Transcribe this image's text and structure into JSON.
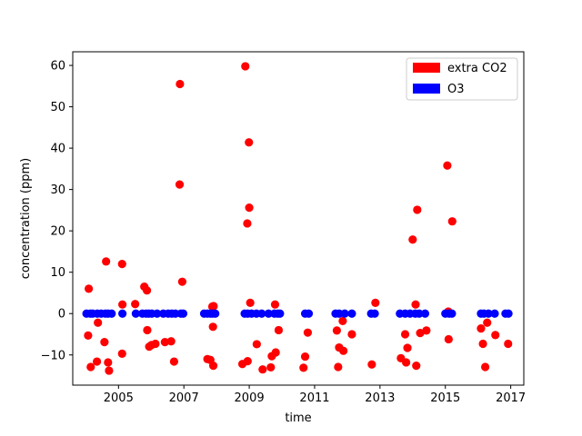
{
  "chart_data": {
    "type": "scatter",
    "xlabel": "time",
    "ylabel": "concentration (ppm)",
    "x_tick_labels": [
      "2005",
      "2007",
      "2009",
      "2011",
      "2013",
      "2015",
      "2017"
    ],
    "y_tick_labels": [
      "−10",
      "0",
      "10",
      "20",
      "30",
      "40",
      "50",
      "60"
    ],
    "xlim": [
      2003.6,
      2017.4
    ],
    "ylim": [
      -17.3,
      63.3
    ],
    "legend_position": "top-right",
    "grid": false,
    "series": [
      {
        "name": "extra CO2",
        "color": "#ff0000",
        "points": [
          [
            2004.09,
            6.0
          ],
          [
            2004.07,
            -5.3
          ],
          [
            2004.15,
            -12.9
          ],
          [
            2004.34,
            -11.6
          ],
          [
            2004.37,
            -2.2
          ],
          [
            2004.57,
            -6.9
          ],
          [
            2004.62,
            12.6
          ],
          [
            2004.68,
            -11.8
          ],
          [
            2004.71,
            -13.8
          ],
          [
            2005.11,
            12.0
          ],
          [
            2005.12,
            2.2
          ],
          [
            2005.11,
            -9.7
          ],
          [
            2005.51,
            2.3
          ],
          [
            2005.79,
            6.5
          ],
          [
            2005.87,
            5.6
          ],
          [
            2005.88,
            -4.0
          ],
          [
            2005.94,
            -8.0
          ],
          [
            2006.01,
            -7.6
          ],
          [
            2006.13,
            -7.3
          ],
          [
            2006.42,
            -6.9
          ],
          [
            2006.61,
            -6.7
          ],
          [
            2006.7,
            -11.6
          ],
          [
            2006.88,
            55.5
          ],
          [
            2006.87,
            31.2
          ],
          [
            2006.95,
            7.7
          ],
          [
            2007.72,
            -11.0
          ],
          [
            2007.81,
            -11.2
          ],
          [
            2007.87,
            1.7
          ],
          [
            2007.91,
            1.8
          ],
          [
            2007.89,
            -3.2
          ],
          [
            2007.9,
            -12.6
          ],
          [
            2008.88,
            59.8
          ],
          [
            2008.94,
            21.8
          ],
          [
            2008.99,
            41.4
          ],
          [
            2009.0,
            25.6
          ],
          [
            2009.03,
            2.6
          ],
          [
            2008.79,
            -12.2
          ],
          [
            2008.95,
            -11.5
          ],
          [
            2009.23,
            -7.4
          ],
          [
            2009.41,
            -13.5
          ],
          [
            2009.66,
            -13.0
          ],
          [
            2009.69,
            -10.3
          ],
          [
            2009.79,
            2.2
          ],
          [
            2009.81,
            -9.4
          ],
          [
            2009.9,
            -4.0
          ],
          [
            2010.66,
            -13.1
          ],
          [
            2010.71,
            -10.4
          ],
          [
            2010.79,
            -4.6
          ],
          [
            2011.68,
            -4.1
          ],
          [
            2011.72,
            -12.9
          ],
          [
            2011.75,
            -8.2
          ],
          [
            2011.86,
            -1.8
          ],
          [
            2011.88,
            -9.0
          ],
          [
            2012.14,
            -5.0
          ],
          [
            2012.75,
            -12.3
          ],
          [
            2012.86,
            2.6
          ],
          [
            2013.64,
            -10.8
          ],
          [
            2013.77,
            -5.0
          ],
          [
            2013.8,
            -11.8
          ],
          [
            2013.84,
            -8.3
          ],
          [
            2014.0,
            17.9
          ],
          [
            2014.09,
            2.2
          ],
          [
            2014.11,
            -12.6
          ],
          [
            2014.14,
            25.1
          ],
          [
            2014.23,
            -4.7
          ],
          [
            2014.42,
            -4.1
          ],
          [
            2015.06,
            35.8
          ],
          [
            2015.09,
            0.5
          ],
          [
            2015.1,
            -6.2
          ],
          [
            2015.21,
            22.3
          ],
          [
            2016.09,
            -3.6
          ],
          [
            2016.15,
            -7.3
          ],
          [
            2016.22,
            -12.9
          ],
          [
            2016.28,
            -2.2
          ],
          [
            2016.53,
            -5.2
          ],
          [
            2016.92,
            -7.3
          ]
        ]
      },
      {
        "name": "O3",
        "color": "#0000ff",
        "points": [
          [
            2004.02,
            0.0
          ],
          [
            2004.14,
            0.0
          ],
          [
            2004.21,
            0.0
          ],
          [
            2004.35,
            0.0
          ],
          [
            2004.47,
            0.0
          ],
          [
            2004.6,
            0.0
          ],
          [
            2004.68,
            0.0
          ],
          [
            2004.79,
            0.0
          ],
          [
            2005.12,
            0.0
          ],
          [
            2005.53,
            0.0
          ],
          [
            2005.73,
            0.0
          ],
          [
            2005.85,
            0.0
          ],
          [
            2005.93,
            0.0
          ],
          [
            2006.02,
            0.0
          ],
          [
            2006.18,
            0.0
          ],
          [
            2006.37,
            0.0
          ],
          [
            2006.52,
            0.0
          ],
          [
            2006.63,
            0.0
          ],
          [
            2006.74,
            0.0
          ],
          [
            2006.91,
            0.0
          ],
          [
            2006.98,
            0.0
          ],
          [
            2007.62,
            0.0
          ],
          [
            2007.72,
            0.0
          ],
          [
            2007.81,
            0.0
          ],
          [
            2007.88,
            0.0
          ],
          [
            2007.96,
            0.0
          ],
          [
            2008.86,
            0.0
          ],
          [
            2008.95,
            0.0
          ],
          [
            2009.07,
            0.0
          ],
          [
            2009.22,
            0.0
          ],
          [
            2009.38,
            0.0
          ],
          [
            2009.59,
            0.0
          ],
          [
            2009.77,
            0.0
          ],
          [
            2009.87,
            0.0
          ],
          [
            2009.94,
            0.0
          ],
          [
            2010.71,
            0.0
          ],
          [
            2010.82,
            0.0
          ],
          [
            2011.64,
            0.0
          ],
          [
            2011.75,
            0.0
          ],
          [
            2011.92,
            0.0
          ],
          [
            2012.14,
            0.0
          ],
          [
            2012.73,
            0.0
          ],
          [
            2012.84,
            0.0
          ],
          [
            2013.61,
            0.0
          ],
          [
            2013.77,
            0.0
          ],
          [
            2013.92,
            0.0
          ],
          [
            2014.08,
            0.0
          ],
          [
            2014.2,
            0.0
          ],
          [
            2014.38,
            0.0
          ],
          [
            2015.0,
            0.0
          ],
          [
            2015.12,
            0.0
          ],
          [
            2015.2,
            0.0
          ],
          [
            2016.09,
            0.0
          ],
          [
            2016.18,
            0.0
          ],
          [
            2016.32,
            0.0
          ],
          [
            2016.51,
            0.0
          ],
          [
            2016.84,
            0.0
          ],
          [
            2016.93,
            0.0
          ]
        ]
      }
    ]
  }
}
